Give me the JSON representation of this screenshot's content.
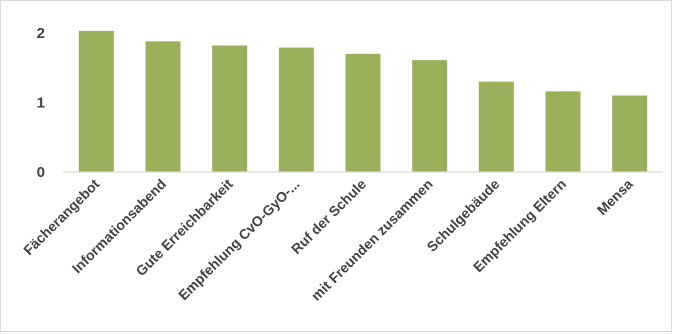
{
  "chart_data": {
    "type": "bar",
    "categories": [
      "Fächerangebot",
      "Informationsabend",
      "Gute Erreichbarkeit",
      "Empfehlung CvO-GyO-...",
      "Ruf der Schule",
      "mit Freunden zusammen",
      "Schulgebäude",
      "Empfehlung Eltern",
      "Mensa"
    ],
    "values": [
      2.03,
      1.88,
      1.82,
      1.79,
      1.7,
      1.61,
      1.3,
      1.16,
      1.1
    ],
    "yticks": [
      "0",
      "1",
      "2"
    ],
    "ylim": [
      0,
      2.12
    ],
    "bar_color": "#9aaf5a",
    "grid": false,
    "legend": false
  }
}
